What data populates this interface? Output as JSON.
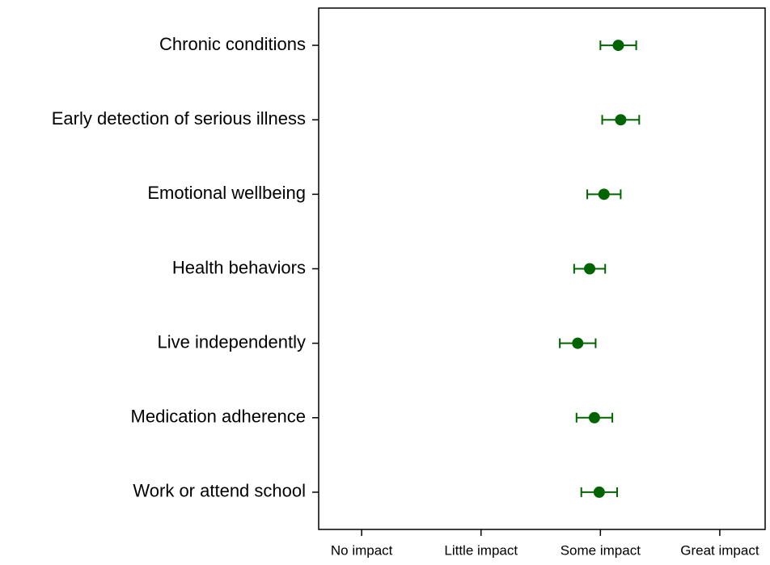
{
  "chart_data": {
    "type": "dot",
    "categories": [
      "Chronic conditions",
      "Early detection of serious illness",
      "Emotional wellbeing",
      "Health behaviors",
      "Live independently",
      "Medication adherence",
      "Work or attend school"
    ],
    "values": [
      3.15,
      3.17,
      3.03,
      2.91,
      2.81,
      2.95,
      2.99
    ],
    "errors": [
      0.15,
      0.155,
      0.14,
      0.13,
      0.15,
      0.15,
      0.15
    ],
    "color": "#006400",
    "xlim": [
      0.64,
      4.38
    ],
    "xticks": [
      {
        "value": 1,
        "label": "No impact"
      },
      {
        "value": 2,
        "label": "Little impact"
      },
      {
        "value": 3,
        "label": "Some impact"
      },
      {
        "value": 4,
        "label": "Great impact"
      }
    ],
    "grid": false
  }
}
